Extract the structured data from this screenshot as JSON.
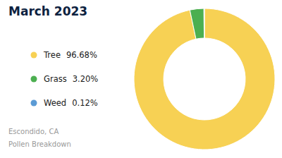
{
  "chart_data": {
    "type": "donut",
    "title": "March 2023",
    "subtitle": [
      "Escondido, CA",
      "Pollen Breakdown"
    ],
    "categories": [
      "Tree",
      "Grass",
      "Weed"
    ],
    "values": [
      96.68,
      3.2,
      0.12
    ],
    "value_labels": [
      "96.68%",
      "3.20%",
      "0.12%"
    ],
    "colors": [
      "#F7D154",
      "#4CAF50",
      "#5B9BD5"
    ]
  }
}
